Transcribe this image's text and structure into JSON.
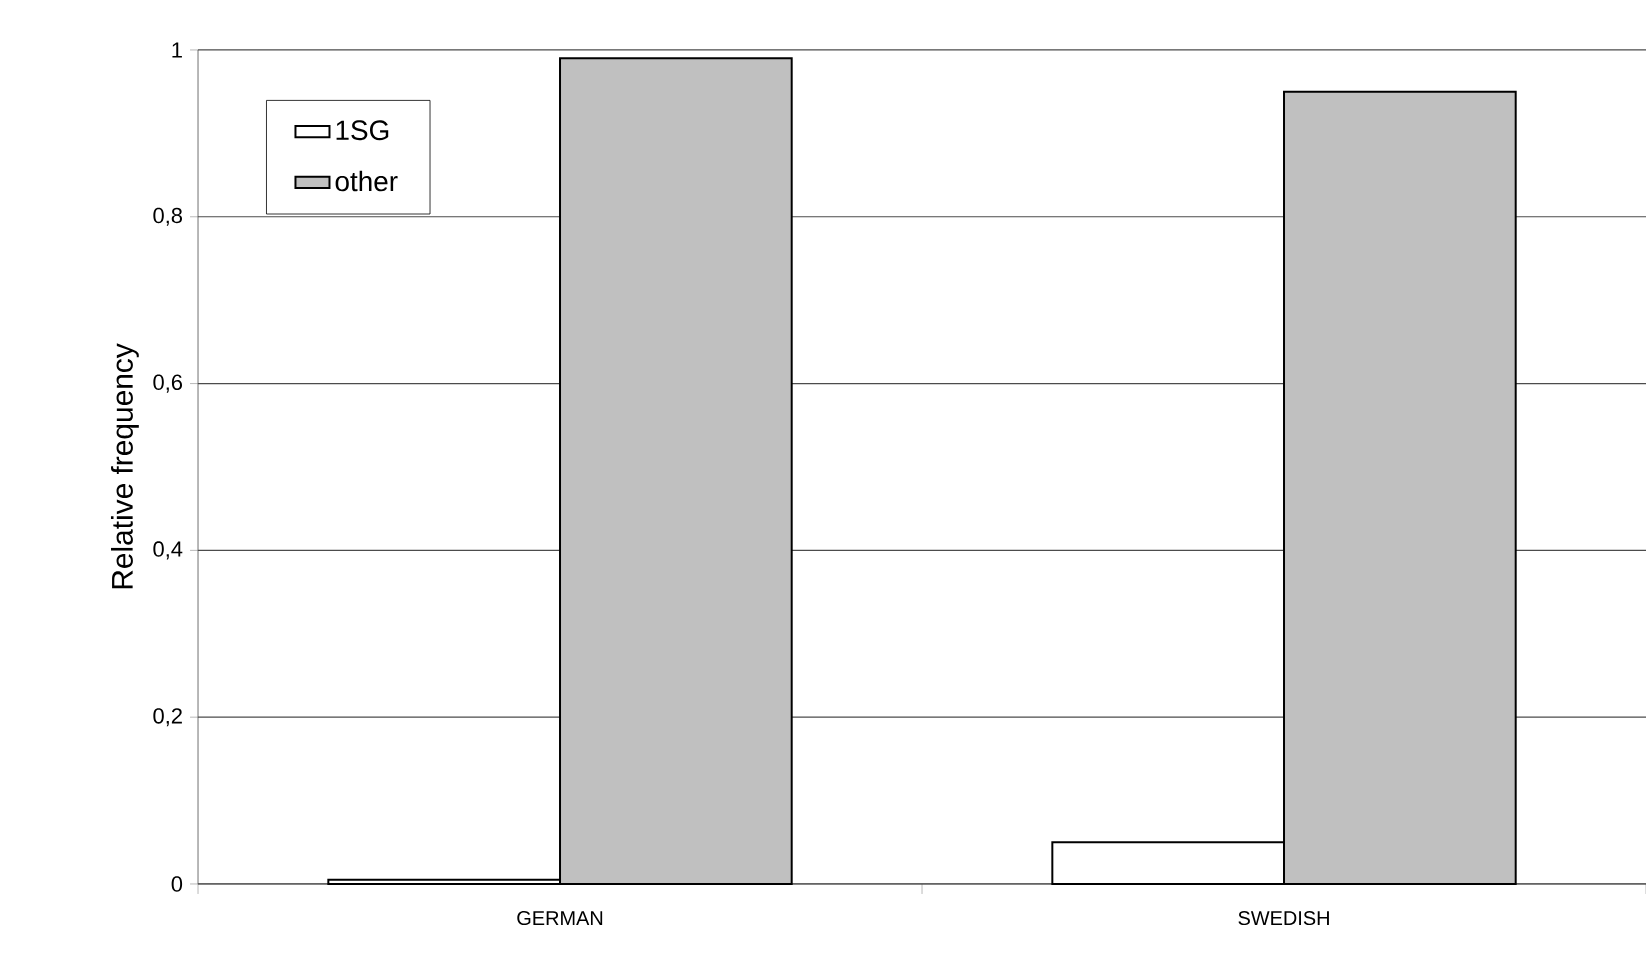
{
  "chart_data": {
    "type": "bar",
    "ylabel": "Relative frequency",
    "categories": [
      "GERMAN",
      "SWEDISH"
    ],
    "series": [
      {
        "name": "1SG",
        "color": "#ffffff",
        "values": [
          0.005,
          0.05
        ]
      },
      {
        "name": "other",
        "color": "#c0c0c0",
        "values": [
          0.99,
          0.95
        ]
      }
    ],
    "ylim": [
      0,
      1
    ],
    "yticks": [
      0,
      {
        "value": 0.2,
        "label": "0,2"
      },
      {
        "value": 0.4,
        "label": "0,4"
      },
      {
        "value": 0.6,
        "label": "0,6"
      },
      {
        "value": 0.8,
        "label": "0,8"
      },
      1
    ],
    "grid": "y",
    "legend": "top left"
  }
}
